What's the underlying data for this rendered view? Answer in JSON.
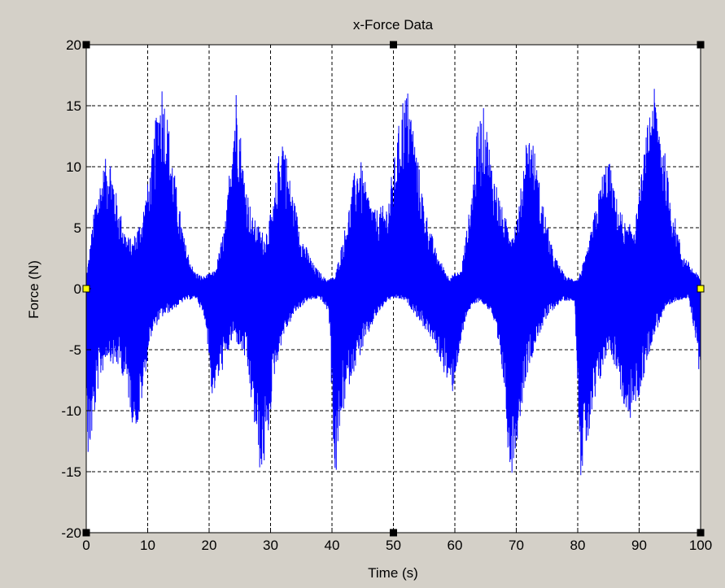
{
  "figure": {
    "background": "#d4d0c8",
    "axes_background": "#ffffff",
    "line_color": "#0000ff",
    "handle_color": "#000000",
    "anchor_color": "#ffff00"
  },
  "chart_data": {
    "type": "line",
    "title": "x-Force Data",
    "xlabel": "Time (s)",
    "ylabel": "Force (N)",
    "xlim": [
      0,
      100
    ],
    "ylim": [
      -20,
      20
    ],
    "xticks": [
      0,
      10,
      20,
      30,
      40,
      50,
      60,
      70,
      80,
      90,
      100
    ],
    "yticks": [
      -20,
      -15,
      -10,
      -5,
      0,
      5,
      10,
      15,
      20
    ],
    "grid": true,
    "grid_style": "dashed",
    "series": [
      {
        "color": "#0000ff",
        "description_of_shape": "dense oscillating signal",
        "upper_envelope": {
          "x": [
            0,
            0.5,
            1.5,
            3.0,
            3.8,
            5.0,
            6.5,
            7.5,
            9.0,
            10.5,
            11.5,
            12.3,
            13.2,
            14.5,
            16.0,
            17.5,
            19.0,
            21.0,
            22.8,
            23.8,
            24.5,
            25.5,
            27.0,
            29.0,
            30.5,
            31.5,
            32.0,
            33.0,
            35.0,
            37.0,
            39.0,
            40.5,
            42.5,
            43.8,
            44.5,
            45.5,
            47.0,
            49.0,
            50.5,
            51.5,
            52.5,
            53.5,
            55.0,
            57.0,
            59.0,
            61.0,
            62.5,
            63.8,
            64.8,
            66.0,
            68.0,
            69.5,
            70.5,
            71.5,
            72.5,
            74.0,
            76.0,
            78.0,
            80.0,
            81.5,
            83.0,
            84.2,
            85.0,
            86.0,
            88.0,
            89.5,
            91.0,
            92.2,
            93.5,
            95.0,
            97.0,
            99.0,
            99.5,
            100
          ],
          "y": [
            1.0,
            3.0,
            7.5,
            10.5,
            11.5,
            7.5,
            4.5,
            4.0,
            6.0,
            10.0,
            15.0,
            17.5,
            14.5,
            9.0,
            4.0,
            1.5,
            1.0,
            1.5,
            6.0,
            14.0,
            17.2,
            10.5,
            6.0,
            4.5,
            7.0,
            12.0,
            13.5,
            9.5,
            4.5,
            2.0,
            0.8,
            1.0,
            6.0,
            10.0,
            11.0,
            8.5,
            6.5,
            7.0,
            12.0,
            16.0,
            16.5,
            12.5,
            7.0,
            3.0,
            1.0,
            1.5,
            7.0,
            14.0,
            15.0,
            10.5,
            6.0,
            5.0,
            7.0,
            12.5,
            13.0,
            8.0,
            3.0,
            1.0,
            0.8,
            3.0,
            7.0,
            10.0,
            11.0,
            8.0,
            5.0,
            6.0,
            12.0,
            17.0,
            14.0,
            8.0,
            3.0,
            1.5,
            1.2,
            1.0
          ]
        },
        "lower_envelope": {
          "x": [
            0,
            0.3,
            1.0,
            2.0,
            3.5,
            4.5,
            5.5,
            6.5,
            7.5,
            8.5,
            9.5,
            10.5,
            12.0,
            14.0,
            16.0,
            18.0,
            19.5,
            20.5,
            22.0,
            24.0,
            26.0,
            27.5,
            28.5,
            29.5,
            30.5,
            32.0,
            34.0,
            36.0,
            38.0,
            39.5,
            40.5,
            41.5,
            43.0,
            45.0,
            47.0,
            49.0,
            50.5,
            52.0,
            54.0,
            56.0,
            58.0,
            59.5,
            60.5,
            62.0,
            64.0,
            66.0,
            68.0,
            69.0,
            70.0,
            71.5,
            73.5,
            75.5,
            77.5,
            79.5,
            80.5,
            82.0,
            83.5,
            85.0,
            86.5,
            88.0,
            90.0,
            92.0,
            94.0,
            96.0,
            98.0,
            99.5,
            100
          ],
          "y": [
            -5.0,
            -14.5,
            -12.0,
            -8.0,
            -5.5,
            -6.5,
            -6.5,
            -8.0,
            -11.0,
            -11.5,
            -7.5,
            -4.0,
            -2.5,
            -1.8,
            -1.0,
            -0.8,
            -3.0,
            -9.0,
            -7.0,
            -4.0,
            -6.0,
            -12.0,
            -16.0,
            -13.0,
            -7.5,
            -4.0,
            -2.0,
            -1.0,
            -0.8,
            -2.0,
            -16.5,
            -11.0,
            -7.5,
            -5.0,
            -2.5,
            -1.0,
            -0.8,
            -1.0,
            -2.5,
            -4.0,
            -6.5,
            -9.0,
            -6.0,
            -2.0,
            -1.0,
            -2.0,
            -8.0,
            -16.0,
            -13.0,
            -7.5,
            -4.0,
            -2.0,
            -1.0,
            -1.0,
            -15.5,
            -12.0,
            -8.0,
            -5.0,
            -7.0,
            -11.5,
            -9.0,
            -4.5,
            -2.0,
            -1.0,
            -0.8,
            -5.0,
            -9.5
          ]
        }
      }
    ]
  }
}
